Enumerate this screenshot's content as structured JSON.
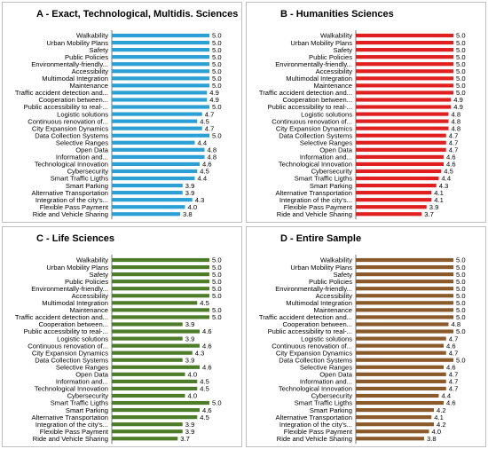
{
  "categories": [
    "Walkability",
    "Urban Mobility Plans",
    "Safety",
    "Public Policies",
    "Environmentally-friendly...",
    "Accessibility",
    "Multimodal Integration",
    "Maintenance",
    "Traffic accident detection and...",
    "Cooperation between...",
    "Public accessibility to real-...",
    "Logistic solutions",
    "Continuous renovation of...",
    "City Expansion Dynamics",
    "Data Collection Systems",
    "Selective Ranges",
    "Open Data",
    "Information and...",
    "Technological Innovation",
    "Cybersecurity",
    "Smart Traffic Ligths",
    "Smart Parking",
    "Alternative Transportation",
    "Integration of the city's...",
    "Flexible Pass Payment",
    "Ride and Vehicle Sharing"
  ],
  "chart_data": [
    {
      "type": "bar",
      "title": "A - Exact, Technological, Multidis. Sciences",
      "color": "#2aa0d4",
      "xlim": [
        1,
        5
      ],
      "xticks": [
        1,
        2,
        3,
        4,
        5
      ],
      "values": [
        5.0,
        5.0,
        5.0,
        5.0,
        5.0,
        5.0,
        5.0,
        5.0,
        4.9,
        4.9,
        5.0,
        4.7,
        4.5,
        4.7,
        5.0,
        4.4,
        4.8,
        4.8,
        4.6,
        4.5,
        4.4,
        3.9,
        3.9,
        4.3,
        4.0,
        3.8
      ],
      "value_labels": [
        "5.0",
        "5.0",
        "5.0",
        "5.0",
        "5.0",
        "5.0",
        "5.0",
        "5.0",
        "4.9",
        "4.9",
        "5.0",
        "4.7",
        "4.5",
        "4.7",
        "5.0",
        "4.4",
        "4.8",
        "4.8",
        "4.6",
        "4.5",
        "4.4",
        "3.9",
        "3.9",
        "4.3",
        "4.0",
        "3.8"
      ]
    },
    {
      "type": "bar",
      "title": "B - Humanities Sciences",
      "color": "#e02020",
      "xlim": [
        1,
        5
      ],
      "xticks": [
        1,
        2,
        3,
        4,
        5
      ],
      "values": [
        5.0,
        5.0,
        5.0,
        5.0,
        5.0,
        5.0,
        5.0,
        5.0,
        5.0,
        4.9,
        4.9,
        4.8,
        4.8,
        4.8,
        4.7,
        4.7,
        4.7,
        4.6,
        4.6,
        4.5,
        4.4,
        4.3,
        4.1,
        4.1,
        3.9,
        3.7
      ],
      "value_labels": [
        "5.0",
        "5.0",
        "5.0",
        "5.0",
        "5.0",
        "5.0",
        "5.0",
        "5.0",
        "5.0",
        "4.9",
        "4.9",
        "4.8",
        "4.8",
        "4.8",
        "4.7",
        "4.7",
        "4.7",
        "4.6",
        "4.6",
        "4.5",
        "4.4",
        "4.3",
        "4.1",
        "4.1",
        "3.9",
        "3.7"
      ]
    },
    {
      "type": "bar",
      "title": "C - Life Sciences",
      "color": "#4e7d2a",
      "xlim": [
        1,
        5
      ],
      "xticks": [
        1,
        2,
        3,
        4,
        5
      ],
      "values": [
        5.0,
        5.0,
        5.0,
        5.0,
        5.0,
        5.0,
        4.5,
        5.0,
        5.0,
        3.9,
        4.6,
        3.9,
        4.6,
        4.3,
        3.9,
        4.6,
        4.0,
        4.5,
        4.5,
        4.0,
        5.0,
        4.6,
        4.5,
        3.9,
        3.9,
        3.7
      ],
      "value_labels": [
        "5.0",
        "5.0",
        "5.0",
        "5.0",
        "5.0",
        "5.0",
        "4.5",
        "5.0",
        "5.0",
        "3.9",
        "4.6",
        "3.9",
        "4.6",
        "4.3",
        "3.9",
        "4.6",
        "4.0",
        "4.5",
        "4.5",
        "4.0",
        "5.0",
        "4.6",
        "4.5",
        "3.9",
        "3.9",
        "3.7"
      ]
    },
    {
      "type": "bar",
      "title": "D - Entire Sample",
      "color": "#8b5a2b",
      "xlim": [
        1,
        5
      ],
      "xticks": [
        1,
        2,
        3,
        4,
        5
      ],
      "values": [
        5.0,
        5.0,
        5.0,
        5.0,
        5.0,
        5.0,
        5.0,
        5.0,
        5.0,
        4.8,
        5.0,
        4.7,
        4.6,
        4.7,
        5.0,
        4.6,
        4.7,
        4.7,
        4.7,
        4.4,
        4.6,
        4.2,
        4.1,
        4.2,
        4.0,
        3.8
      ],
      "value_labels": [
        "5.0",
        "5.0",
        "5.0",
        "5.0",
        "5.0",
        "5.0",
        "5.0",
        "5.0",
        "5.0",
        "4.8",
        "5.0",
        "4.7",
        "4.6",
        "4.7",
        "5.0",
        "4.6",
        "4.7",
        "4.7",
        "4.7",
        "4.4",
        "4.6",
        "4.2",
        "4.1",
        "4.2",
        "4.0",
        "3.8"
      ]
    }
  ]
}
